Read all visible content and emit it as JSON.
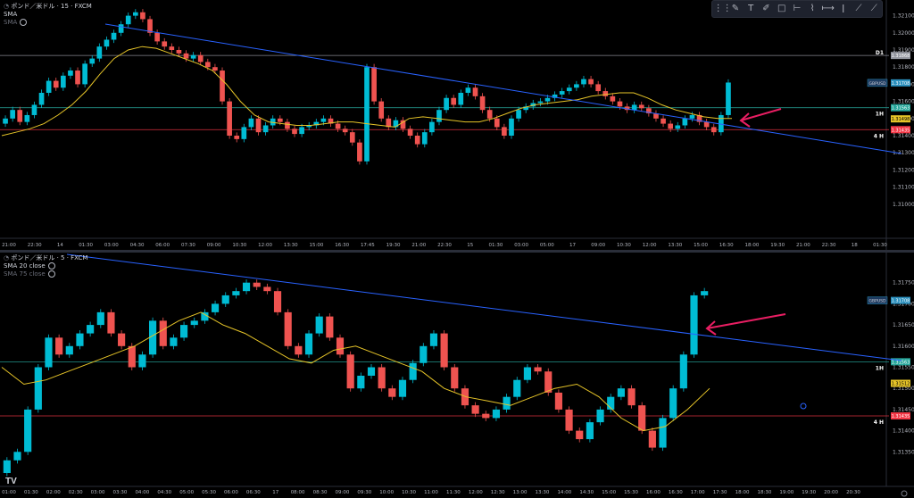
{
  "toolbar": {
    "icons": [
      "drag-handle-icon",
      "pencil-icon",
      "text-icon",
      "anchored-text-icon",
      "rectangle-icon",
      "horizontal-line-icon",
      "path-icon",
      "horizontal-ray-icon",
      "vertical-line-icon",
      "trend-line-icon",
      "ray-icon"
    ],
    "glyphs": [
      "⋮⋮",
      "✎",
      "T",
      "✐",
      "□",
      "⊢",
      "⌇",
      "⟼",
      "ǀ",
      "⟋",
      "⟋"
    ]
  },
  "top_header": {
    "symbol_line": "ポンド／米ドル · 15 · FXCM",
    "indicator": "SMA",
    "indicator_2": "SMA"
  },
  "bottom_header": {
    "symbol_line": "ポンド／米ドル · 5 · FXCM",
    "indicator": "SMA 20 close",
    "indicator_2": "SMA 75 close"
  },
  "footer_logo": "TV",
  "colors": {
    "up": "#26a69a",
    "up_bright": "#00bcd4",
    "down": "#ef5350",
    "sma": "#e6c428",
    "trend": "#2962ff",
    "arrow": "#e91e63",
    "d1": "#9598a1",
    "h1": "#26a69a",
    "h4": "#f23645"
  },
  "chart_data": [
    {
      "type": "candlestick",
      "title": "ポンド／米ドル · 15 · FXCM",
      "ylim": [
        1.309,
        1.3215
      ],
      "y_ticks": [
        "1.32200",
        "1.32100",
        "1.32000",
        "1.31900",
        "1.31800",
        "1.31700",
        "1.31600",
        "1.31500",
        "1.31400",
        "1.31300",
        "1.31200",
        "1.31100",
        "1.31000"
      ],
      "x_ticks": [
        "21:00",
        "22:30",
        "14",
        "01:30",
        "03:00",
        "04:30",
        "06:00",
        "07:30",
        "09:00",
        "10:30",
        "12:00",
        "13:30",
        "15:00",
        "16:30",
        "17:45",
        "19:30",
        "21:00",
        "22:30",
        "15",
        "01:30",
        "03:00",
        "05:00",
        "17",
        "09:00",
        "10:30",
        "12:00",
        "13:30",
        "15:00",
        "16:30",
        "18:00",
        "19:30",
        "21:00",
        "22:30",
        "18",
        "01:30"
      ],
      "closes": [
        1.315,
        1.3155,
        1.3148,
        1.3152,
        1.3158,
        1.3165,
        1.3172,
        1.3168,
        1.3175,
        1.3178,
        1.317,
        1.3182,
        1.3185,
        1.3192,
        1.3196,
        1.32,
        1.3205,
        1.321,
        1.3212,
        1.3208,
        1.32,
        1.3195,
        1.3192,
        1.319,
        1.3188,
        1.3185,
        1.3187,
        1.3183,
        1.318,
        1.3178,
        1.316,
        1.314,
        1.3138,
        1.3145,
        1.315,
        1.3142,
        1.3146,
        1.315,
        1.3148,
        1.3144,
        1.3141,
        1.3145,
        1.3146,
        1.3148,
        1.315,
        1.3147,
        1.3144,
        1.3142,
        1.3136,
        1.3125,
        1.318,
        1.316,
        1.315,
        1.3145,
        1.3149,
        1.3144,
        1.314,
        1.3135,
        1.3142,
        1.3148,
        1.3155,
        1.3162,
        1.3158,
        1.3165,
        1.3168,
        1.3163,
        1.3155,
        1.315,
        1.3145,
        1.314,
        1.315,
        1.3155,
        1.3157,
        1.3159,
        1.316,
        1.3162,
        1.3164,
        1.3166,
        1.3168,
        1.317,
        1.3173,
        1.317,
        1.3166,
        1.3163,
        1.316,
        1.3157,
        1.3155,
        1.3158,
        1.3156,
        1.3153,
        1.315,
        1.3147,
        1.3144,
        1.3146,
        1.315,
        1.3152,
        1.3148,
        1.3145,
        1.3142,
        1.3152,
        1.3171
      ],
      "sma": [
        1.314,
        1.3142,
        1.3144,
        1.3147,
        1.3152,
        1.3158,
        1.3166,
        1.3176,
        1.3185,
        1.319,
        1.3192,
        1.3191,
        1.3188,
        1.3185,
        1.3182,
        1.3178,
        1.317,
        1.316,
        1.3152,
        1.3148,
        1.3147,
        1.3146,
        1.3146,
        1.3147,
        1.3148,
        1.3148,
        1.3147,
        1.3146,
        1.3145,
        1.315,
        1.3151,
        1.315,
        1.3149,
        1.3148,
        1.3148,
        1.315,
        1.3153,
        1.3156,
        1.3158,
        1.3159,
        1.316,
        1.3161,
        1.3163,
        1.3164,
        1.3165,
        1.3165,
        1.3162,
        1.3158,
        1.3155,
        1.3153,
        1.3151,
        1.315,
        1.315
      ],
      "trendline": [
        [
          "22:30",
          1.3218
        ],
        [
          "22:30 (17)",
          1.3145
        ]
      ],
      "levels": [
        {
          "label": "D1",
          "value": 1.31868,
          "price": "1.31868"
        },
        {
          "label": "1H",
          "value": 1.31563,
          "price": "1.31563"
        },
        {
          "label": "4 H",
          "value": 1.31435,
          "price": "1.31435"
        }
      ],
      "price_tags": [
        {
          "text": "GBPUSD",
          "value": 1.31708,
          "price": "1.31708"
        },
        {
          "text": "",
          "value": 1.31498,
          "price": "1.31498"
        }
      ]
    },
    {
      "type": "candlestick",
      "title": "ポンド／米ドル · 5 · FXCM",
      "ylim": [
        1.313,
        1.318
      ],
      "y_ticks": [
        "1.31750",
        "1.31700",
        "1.31650",
        "1.31600",
        "1.31550",
        "1.31500",
        "1.31450",
        "1.31400",
        "1.31350",
        "1.31300"
      ],
      "x_ticks": [
        "01:00",
        "01:30",
        "02:00",
        "02:30",
        "03:00",
        "03:30",
        "04:00",
        "04:30",
        "05:00",
        "05:30",
        "06:00",
        "06:30",
        "17",
        "08:00",
        "08:30",
        "09:00",
        "09:30",
        "10:00",
        "10:30",
        "11:00",
        "11:30",
        "12:00",
        "12:30",
        "13:00",
        "13:30",
        "14:00",
        "14:30",
        "15:00",
        "15:30",
        "16:00",
        "16:30",
        "17:00",
        "17:30",
        "18:00",
        "18:30",
        "19:00",
        "19:30",
        "20:00",
        "20:30"
      ],
      "closes": [
        1.3133,
        1.3135,
        1.3145,
        1.3155,
        1.3162,
        1.3158,
        1.316,
        1.3163,
        1.3165,
        1.3168,
        1.3163,
        1.316,
        1.3155,
        1.3158,
        1.3166,
        1.316,
        1.3162,
        1.3165,
        1.3166,
        1.3168,
        1.317,
        1.3172,
        1.3173,
        1.3175,
        1.3174,
        1.3173,
        1.3168,
        1.316,
        1.3158,
        1.3163,
        1.3167,
        1.3162,
        1.3158,
        1.315,
        1.3153,
        1.3155,
        1.315,
        1.3148,
        1.3152,
        1.3156,
        1.316,
        1.3163,
        1.3155,
        1.315,
        1.3146,
        1.3144,
        1.3143,
        1.3145,
        1.3148,
        1.3152,
        1.3155,
        1.3154,
        1.3149,
        1.3145,
        1.314,
        1.3138,
        1.3142,
        1.3145,
        1.3148,
        1.315,
        1.3146,
        1.314,
        1.3136,
        1.3143,
        1.315,
        1.3158,
        1.3172,
        1.3173
      ],
      "sma": [
        1.3155,
        1.3151,
        1.3152,
        1.3154,
        1.3156,
        1.3158,
        1.316,
        1.3163,
        1.3166,
        1.3168,
        1.3165,
        1.3163,
        1.316,
        1.3157,
        1.3156,
        1.3159,
        1.316,
        1.3158,
        1.3156,
        1.3154,
        1.315,
        1.3148,
        1.3147,
        1.3146,
        1.3148,
        1.315,
        1.3151,
        1.3148,
        1.3143,
        1.314,
        1.3141,
        1.3145,
        1.315
      ],
      "trendline": [
        [
          "01:00",
          1.3178
        ],
        [
          "20:30",
          1.3155
        ]
      ],
      "levels": [
        {
          "label": "1H",
          "value": 1.31563,
          "price": "1.31563"
        },
        {
          "label": "4 H",
          "value": 1.31435,
          "price": "1.31435"
        }
      ],
      "price_tags": [
        {
          "text": "GBPUSD",
          "value": 1.31708,
          "price": "1.31708"
        },
        {
          "text": "",
          "value": 1.31512,
          "price": "1.31512"
        }
      ]
    }
  ]
}
